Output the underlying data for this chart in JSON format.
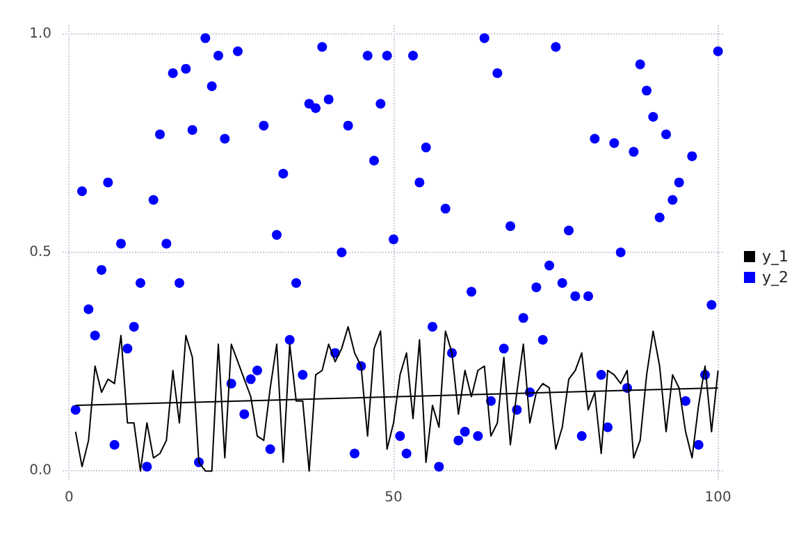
{
  "chart_data": {
    "type": "line",
    "x": [
      1,
      2,
      3,
      4,
      5,
      6,
      7,
      8,
      9,
      10,
      11,
      12,
      13,
      14,
      15,
      16,
      17,
      18,
      19,
      20,
      21,
      22,
      23,
      24,
      25,
      26,
      27,
      28,
      29,
      30,
      31,
      32,
      33,
      34,
      35,
      36,
      37,
      38,
      39,
      40,
      41,
      42,
      43,
      44,
      45,
      46,
      47,
      48,
      49,
      50,
      51,
      52,
      53,
      54,
      55,
      56,
      57,
      58,
      59,
      60,
      61,
      62,
      63,
      64,
      65,
      66,
      67,
      68,
      69,
      70,
      71,
      72,
      73,
      74,
      75,
      76,
      77,
      78,
      79,
      80,
      81,
      82,
      83,
      84,
      85,
      86,
      87,
      88,
      89,
      90,
      91,
      92,
      93,
      94,
      95,
      96,
      97,
      98,
      99,
      100
    ],
    "series": [
      {
        "name": "y_1",
        "type": "line",
        "color": "#000000",
        "marker": "none",
        "values": [
          0.09,
          0.01,
          0.07,
          0.24,
          0.18,
          0.21,
          0.2,
          0.31,
          0.11,
          0.11,
          0.0,
          0.11,
          0.03,
          0.04,
          0.07,
          0.23,
          0.11,
          0.31,
          0.26,
          0.02,
          0.0,
          0.0,
          0.29,
          0.03,
          0.29,
          0.25,
          0.21,
          0.17,
          0.08,
          0.07,
          0.19,
          0.29,
          0.02,
          0.29,
          0.16,
          0.16,
          0.0,
          0.22,
          0.23,
          0.29,
          0.25,
          0.28,
          0.33,
          0.27,
          0.24,
          0.08,
          0.28,
          0.32,
          0.05,
          0.11,
          0.22,
          0.27,
          0.12,
          0.3,
          0.02,
          0.15,
          0.1,
          0.32,
          0.27,
          0.13,
          0.23,
          0.17,
          0.23,
          0.24,
          0.08,
          0.11,
          0.26,
          0.06,
          0.18,
          0.29,
          0.11,
          0.18,
          0.2,
          0.19,
          0.05,
          0.1,
          0.21,
          0.23,
          0.27,
          0.14,
          0.18,
          0.04,
          0.23,
          0.22,
          0.2,
          0.23,
          0.03,
          0.07,
          0.22,
          0.32,
          0.24,
          0.09,
          0.22,
          0.19,
          0.09,
          0.03,
          0.15,
          0.24,
          0.09,
          0.23
        ]
      },
      {
        "name": "y_2",
        "type": "scatter",
        "color": "#0000ff",
        "marker": "circle",
        "values": [
          0.14,
          0.64,
          0.37,
          0.31,
          0.46,
          0.66,
          0.06,
          0.52,
          0.28,
          0.33,
          0.43,
          0.01,
          0.62,
          0.77,
          0.52,
          0.91,
          0.43,
          0.92,
          0.78,
          0.02,
          0.99,
          0.88,
          0.95,
          0.76,
          0.2,
          0.96,
          0.13,
          0.21,
          0.23,
          0.79,
          0.05,
          0.54,
          0.68,
          0.3,
          0.43,
          0.22,
          0.84,
          0.83,
          0.97,
          0.85,
          0.27,
          0.5,
          0.79,
          0.04,
          0.24,
          0.95,
          0.71,
          0.84,
          0.95,
          0.53,
          0.08,
          0.04,
          0.95,
          0.66,
          0.74,
          0.33,
          0.01,
          0.6,
          0.27,
          0.07,
          0.09,
          0.41,
          0.08,
          0.99,
          0.16,
          0.91,
          0.28,
          0.56,
          0.14,
          0.35,
          0.18,
          0.42,
          0.3,
          0.47,
          0.97,
          0.43,
          0.55,
          0.4,
          0.08,
          0.4,
          0.76,
          0.22,
          0.1,
          0.75,
          0.5,
          0.19,
          0.73,
          0.93,
          0.87,
          0.81,
          0.58,
          0.77,
          0.62,
          0.66,
          0.16,
          0.72,
          0.06,
          0.22,
          0.38,
          0.96
        ]
      },
      {
        "color": "#000000",
        "marker": "none",
        "x": [
          1,
          100
        ],
        "values": [
          0.15,
          0.19
        ]
      }
    ],
    "xlim": [
      -1,
      101
    ],
    "xticks": [
      0,
      50,
      100
    ],
    "ylim": [
      -0.02,
      1.02
    ],
    "yticks": [
      {
        "value": 0,
        "label": "0.0"
      },
      {
        "value": 0.5,
        "label": "0.5"
      },
      {
        "value": 1,
        "label": "1.0"
      }
    ],
    "grid": true,
    "legend": "right"
  }
}
